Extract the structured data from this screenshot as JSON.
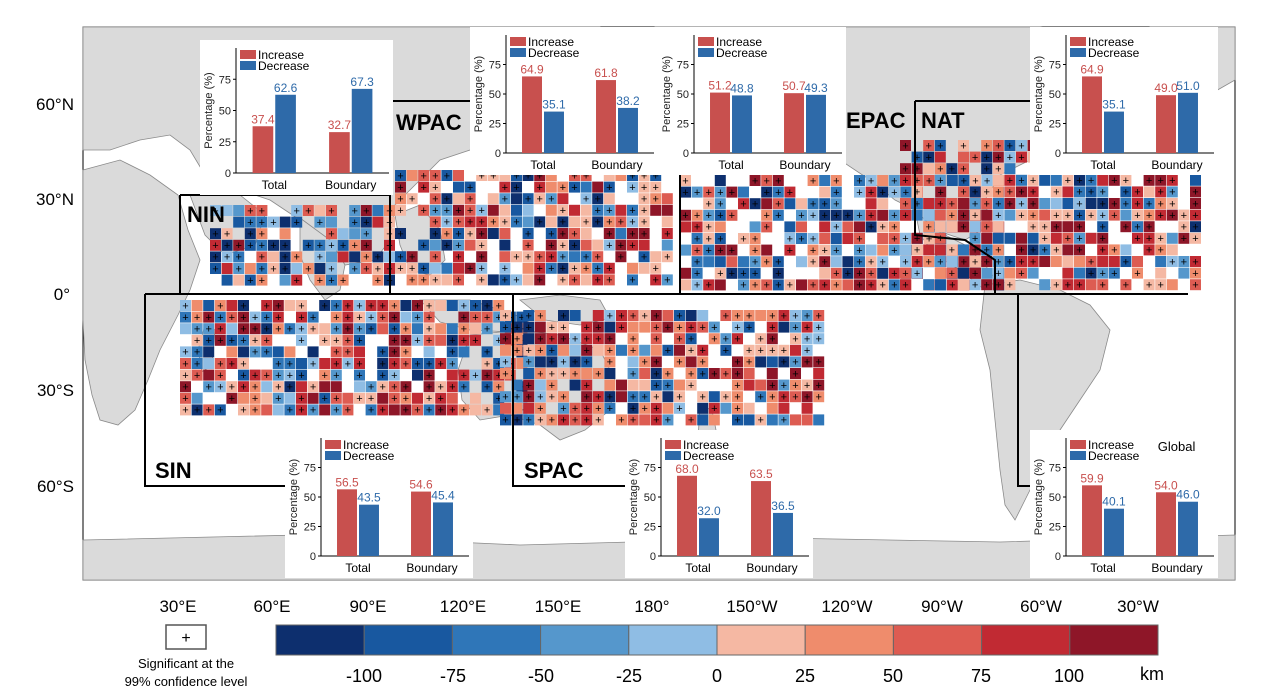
{
  "map": {
    "lat_labels": [
      "60°N",
      "30°N",
      "0°",
      "30°S",
      "60°S"
    ],
    "lon_labels": [
      "30°E",
      "60°E",
      "90°E",
      "120°E",
      "150°E",
      "180°",
      "150°W",
      "120°W",
      "90°W",
      "60°W",
      "30°W"
    ],
    "basins": [
      "NIN",
      "WPAC",
      "EPAC",
      "NAT",
      "SIN",
      "SPAC"
    ]
  },
  "colorbar": {
    "tick_labels": [
      "-100",
      "-75",
      "-50",
      "-25",
      "0",
      "25",
      "50",
      "75",
      "100"
    ],
    "unit": "km",
    "colors": [
      "#0d2f6e",
      "#1858a0",
      "#2f76b8",
      "#5597cc",
      "#8fbde4",
      "#f5b8a3",
      "#ef8c6c",
      "#dd5c52",
      "#c12a33",
      "#8e1628"
    ]
  },
  "significance_legend": {
    "symbol": "+",
    "text_line1": "Significant at the",
    "text_line2": "99% confidence level"
  },
  "colors": {
    "increase": "#c8504e",
    "decrease": "#2e6aa9",
    "land": "#dadada",
    "ocean": "#ffffff"
  },
  "chart_data": [
    {
      "type": "bar",
      "region": "NIN",
      "categories": [
        "Total",
        "Boundary"
      ],
      "ylabel": "Percentage (%)",
      "ylim": [
        0,
        100
      ],
      "yticks": [
        "0",
        "25",
        "50",
        "75"
      ],
      "series": [
        {
          "name": "Increase",
          "values": [
            37.4,
            32.7
          ]
        },
        {
          "name": "Decrease",
          "values": [
            62.6,
            67.3
          ]
        }
      ]
    },
    {
      "type": "bar",
      "region": "WPAC",
      "categories": [
        "Total",
        "Boundary"
      ],
      "ylabel": "Percentage (%)",
      "ylim": [
        0,
        100
      ],
      "yticks": [
        "0",
        "25",
        "50",
        "75"
      ],
      "series": [
        {
          "name": "Increase",
          "values": [
            64.9,
            61.8
          ]
        },
        {
          "name": "Decrease",
          "values": [
            35.1,
            38.2
          ]
        }
      ]
    },
    {
      "type": "bar",
      "region": "EPAC",
      "categories": [
        "Total",
        "Boundary"
      ],
      "ylabel": "Percentage (%)",
      "ylim": [
        0,
        100
      ],
      "yticks": [
        "0",
        "25",
        "50",
        "75"
      ],
      "series": [
        {
          "name": "Increase",
          "values": [
            51.2,
            50.7
          ]
        },
        {
          "name": "Decrease",
          "values": [
            48.8,
            49.3
          ]
        }
      ]
    },
    {
      "type": "bar",
      "region": "NAT",
      "categories": [
        "Total",
        "Boundary"
      ],
      "ylabel": "Percentage (%)",
      "ylim": [
        0,
        100
      ],
      "yticks": [
        "0",
        "25",
        "50",
        "75"
      ],
      "series": [
        {
          "name": "Increase",
          "values": [
            64.9,
            49.0
          ]
        },
        {
          "name": "Decrease",
          "values": [
            35.1,
            51.0
          ]
        }
      ]
    },
    {
      "type": "bar",
      "region": "SIN",
      "categories": [
        "Total",
        "Boundary"
      ],
      "ylabel": "Percentage (%)",
      "ylim": [
        0,
        100
      ],
      "yticks": [
        "0",
        "25",
        "50",
        "75"
      ],
      "series": [
        {
          "name": "Increase",
          "values": [
            56.5,
            54.6
          ]
        },
        {
          "name": "Decrease",
          "values": [
            43.5,
            45.4
          ]
        }
      ]
    },
    {
      "type": "bar",
      "region": "SPAC",
      "categories": [
        "Total",
        "Boundary"
      ],
      "ylabel": "Percentage (%)",
      "ylim": [
        0,
        100
      ],
      "yticks": [
        "0",
        "25",
        "50",
        "75"
      ],
      "series": [
        {
          "name": "Increase",
          "values": [
            68.0,
            63.5
          ]
        },
        {
          "name": "Decrease",
          "values": [
            32.0,
            36.5
          ]
        }
      ]
    },
    {
      "type": "bar",
      "region": "Global",
      "title": "Global",
      "categories": [
        "Total",
        "Boundary"
      ],
      "ylabel": "Percentage (%)",
      "ylim": [
        0,
        100
      ],
      "yticks": [
        "0",
        "25",
        "50",
        "75"
      ],
      "series": [
        {
          "name": "Increase",
          "values": [
            59.9,
            54.0
          ]
        },
        {
          "name": "Decrease",
          "values": [
            40.1,
            46.0
          ]
        }
      ]
    }
  ]
}
